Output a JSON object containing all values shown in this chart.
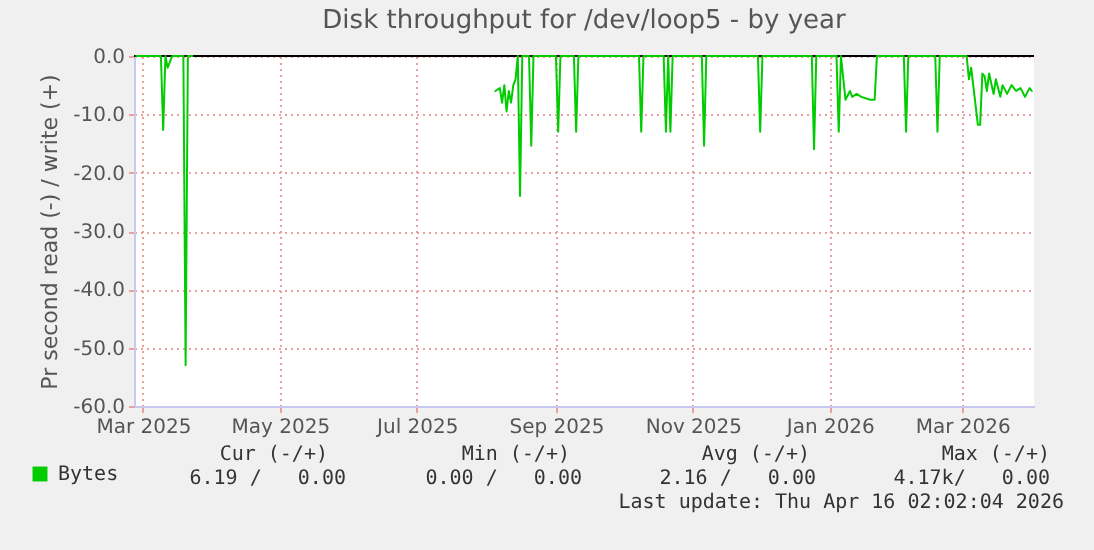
{
  "chart_data": {
    "type": "line",
    "title": "Disk throughput for /dev/loop5 - by year",
    "ylabel": "Pr second read (-) / write (+)",
    "x": [
      "2025-02-26",
      "2025-03-09",
      "2025-03-10",
      "2025-03-11",
      "2025-03-12",
      "2025-03-13",
      "2025-03-14",
      "2025-03-19",
      "2025-03-20",
      "2025-03-21",
      "2025-03-23",
      "2025-03-24",
      "2025-08-05",
      "2025-08-07",
      "2025-08-08",
      "2025-08-09",
      "2025-08-10",
      "2025-08-11",
      "2025-08-12",
      "2025-08-13",
      "2025-08-14",
      "2025-08-15",
      "2025-08-16",
      "2025-08-17",
      "2025-08-20",
      "2025-08-21",
      "2025-08-22",
      "2025-09-01",
      "2025-09-02",
      "2025-09-03",
      "2025-09-09",
      "2025-09-10",
      "2025-09-11",
      "2025-10-08",
      "2025-10-09",
      "2025-10-10",
      "2025-10-19",
      "2025-10-20",
      "2025-10-21",
      "2025-10-22",
      "2025-10-23",
      "2025-11-05",
      "2025-11-06",
      "2025-11-07",
      "2025-11-30",
      "2025-12-01",
      "2025-12-02",
      "2025-12-24",
      "2025-12-25",
      "2025-12-26",
      "2026-01-04",
      "2026-01-05",
      "2026-01-06",
      "2026-01-08",
      "2026-01-10",
      "2026-01-11",
      "2026-01-13",
      "2026-01-15",
      "2026-01-19",
      "2026-01-21",
      "2026-01-22",
      "2026-02-03",
      "2026-02-04",
      "2026-02-05",
      "2026-02-17",
      "2026-02-18",
      "2026-02-19",
      "2026-03-03",
      "2026-03-04",
      "2026-03-05",
      "2026-03-08",
      "2026-03-09",
      "2026-03-10",
      "2026-03-11",
      "2026-03-12",
      "2026-03-13",
      "2026-03-15",
      "2026-03-16",
      "2026-03-18",
      "2026-03-19",
      "2026-03-21",
      "2026-03-23",
      "2026-03-25",
      "2026-03-27",
      "2026-03-29",
      "2026-03-31",
      "2026-04-01"
    ],
    "series": [
      {
        "name": "Bytes",
        "color": "#00cc00",
        "values": [
          0,
          0,
          -12.7,
          0,
          -2,
          -1,
          0,
          0,
          -53,
          0,
          0,
          null,
          -6,
          -5.5,
          -8,
          -5,
          -9.5,
          -6,
          -8,
          -5,
          -4,
          0,
          -24,
          0,
          0,
          -15.4,
          0,
          0,
          -13,
          0,
          0,
          -13,
          0,
          0,
          -13,
          0,
          0,
          -13,
          0,
          -13,
          0,
          0,
          -15.4,
          0,
          0,
          -13,
          0,
          0,
          -16,
          0,
          0,
          -13,
          0,
          -7.5,
          -6,
          -7,
          -6.5,
          -7,
          -7.5,
          -7.5,
          0,
          0,
          -13,
          0,
          0,
          -13,
          0,
          0,
          -4,
          -2,
          -11.8,
          -11.8,
          -3,
          -3.5,
          -6,
          -3,
          -6.5,
          -4,
          -7,
          -5,
          -6.5,
          -5,
          -6,
          -5.5,
          -7,
          -5.5,
          -6
        ]
      }
    ],
    "xlim": [
      "2025-02-25",
      "2026-04-02"
    ],
    "xticks": [
      {
        "value": "2025-03-01",
        "label": "Mar 2025"
      },
      {
        "value": "2025-05-01",
        "label": "May 2025"
      },
      {
        "value": "2025-07-01",
        "label": "Jul 2025"
      },
      {
        "value": "2025-09-01",
        "label": "Sep 2025"
      },
      {
        "value": "2025-11-01",
        "label": "Nov 2025"
      },
      {
        "value": "2026-01-01",
        "label": "Jan 2026"
      },
      {
        "value": "2026-03-01",
        "label": "Mar 2026"
      }
    ],
    "ylim": [
      -60,
      0
    ],
    "yticks": [
      {
        "value": -60,
        "label": "-60.0"
      },
      {
        "value": -50,
        "label": "-50.0"
      },
      {
        "value": -40,
        "label": "-40.0"
      },
      {
        "value": -30,
        "label": "-30.0"
      },
      {
        "value": -20,
        "label": "-20.0"
      },
      {
        "value": -10,
        "label": "-10.0"
      },
      {
        "value": 0,
        "label": "0.0"
      }
    ],
    "ref_lines": [
      {
        "axis": "y",
        "value": 0,
        "color": "#000000"
      }
    ],
    "grid": true,
    "legend": "bottom left",
    "marker": "none",
    "line_style": "solid",
    "annotations": [
      "Cur (-/+)",
      "Min (-/+)",
      "Avg (-/+)",
      "Max (-/+)",
      "6.19 /   0.00",
      "0.00 /   0.00",
      "2.16 /   0.00",
      "4.17k/   0.00",
      "Last update: Thu Apr 16 02:02:04 2026"
    ]
  }
}
